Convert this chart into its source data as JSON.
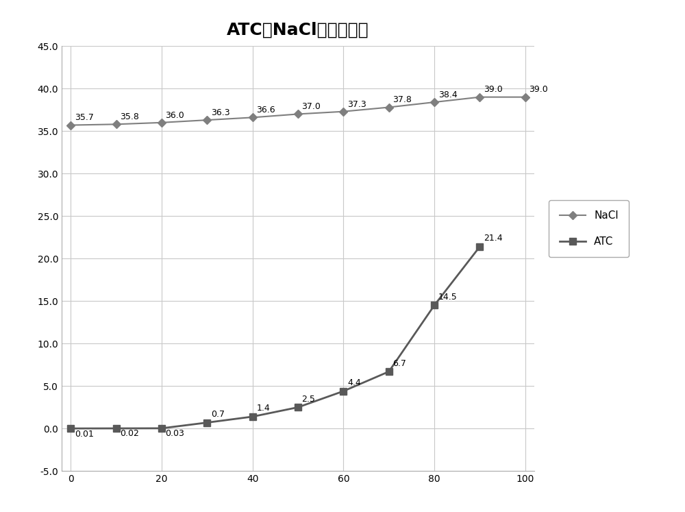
{
  "title": "ATC和NaCl溶解度曲线",
  "x_nacl": [
    0,
    10,
    20,
    30,
    40,
    50,
    60,
    70,
    80,
    90,
    100
  ],
  "y_nacl": [
    35.7,
    35.8,
    36.0,
    36.3,
    36.6,
    37.0,
    37.3,
    37.8,
    38.4,
    39.0,
    39.0
  ],
  "nacl_labels": [
    "35.7",
    "35.8",
    "36.0",
    "36.3",
    "36.6",
    "37.0",
    "37.3",
    "37.8",
    "38.4",
    "39.0"
  ],
  "x_atc": [
    0,
    10,
    20,
    30,
    40,
    50,
    60,
    70,
    80,
    90
  ],
  "y_atc": [
    0.01,
    0.02,
    0.03,
    0.7,
    1.4,
    2.5,
    4.4,
    6.7,
    14.5,
    21.4
  ],
  "atc_labels": [
    "0.01",
    "0.02",
    "0.03",
    "0.7",
    "1.4",
    "2.5",
    "4.4",
    "6.7",
    "14.5",
    "21.4"
  ],
  "nacl_color": "#7f7f7f",
  "atc_color": "#595959",
  "nacl_label": "NaCl",
  "atc_label": "ATC",
  "xlim": [
    -2,
    102
  ],
  "ylim": [
    -5.0,
    45.0
  ],
  "yticks": [
    -5.0,
    0.0,
    5.0,
    10.0,
    15.0,
    20.0,
    25.0,
    30.0,
    35.0,
    40.0,
    45.0
  ],
  "xticks": [
    0,
    20,
    40,
    60,
    80,
    100
  ],
  "bg_color": "#ffffff",
  "grid_color": "#c8c8c8",
  "title_fontsize": 18,
  "annotation_fontsize": 9,
  "legend_fontsize": 11
}
